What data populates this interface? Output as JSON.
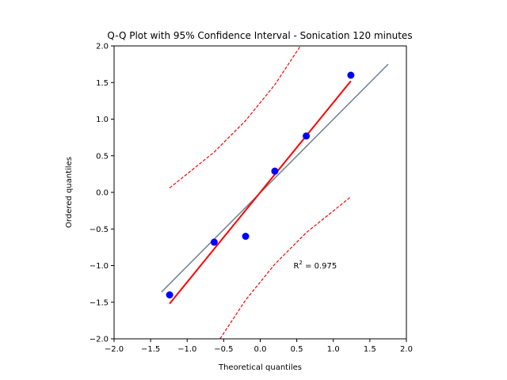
{
  "chart_data": {
    "type": "scatter",
    "title": "Q-Q Plot with 95% Confidence Interval - Sonication 120 minutes",
    "xlabel": "Theoretical quantiles",
    "ylabel": "Ordered quantiles",
    "xlim": [
      -2.0,
      2.0
    ],
    "ylim": [
      -2.0,
      2.0
    ],
    "xticks": [
      "−2.0",
      "−1.5",
      "−1.0",
      "−0.5",
      "0.0",
      "0.5",
      "1.0",
      "1.5",
      "2.0"
    ],
    "yticks": [
      "−2.0",
      "−1.5",
      "−1.0",
      "−0.5",
      "0.0",
      "0.5",
      "1.0",
      "1.5",
      "2.0"
    ],
    "grid": false,
    "points": {
      "x": [
        -1.24,
        -0.63,
        -0.2,
        0.2,
        0.63,
        1.24
      ],
      "y": [
        -1.4,
        -0.68,
        -0.6,
        0.29,
        0.77,
        1.6
      ],
      "color": "#0000ff"
    },
    "reference_line": {
      "x": [
        -1.35,
        1.75
      ],
      "y": [
        -1.36,
        1.75
      ],
      "color": "#708090"
    },
    "fit_line": {
      "x": [
        -1.24,
        1.24
      ],
      "y": [
        -1.52,
        1.52
      ],
      "color": "#ff0000"
    },
    "ci_upper": {
      "x": [
        -1.24,
        -0.63,
        -0.2,
        0.2,
        0.55
      ],
      "y": [
        0.06,
        0.55,
        0.98,
        1.47,
        2.0
      ],
      "color": "#ff0000"
    },
    "ci_lower": {
      "x": [
        -0.55,
        -0.2,
        0.2,
        0.63,
        1.24
      ],
      "y": [
        -2.0,
        -1.47,
        -0.98,
        -0.55,
        -0.06
      ],
      "color": "#ff0000"
    },
    "annotation": {
      "label": "R",
      "superscript": "2",
      "value": " = 0.975",
      "x": 0.52,
      "y": -1.0
    }
  }
}
